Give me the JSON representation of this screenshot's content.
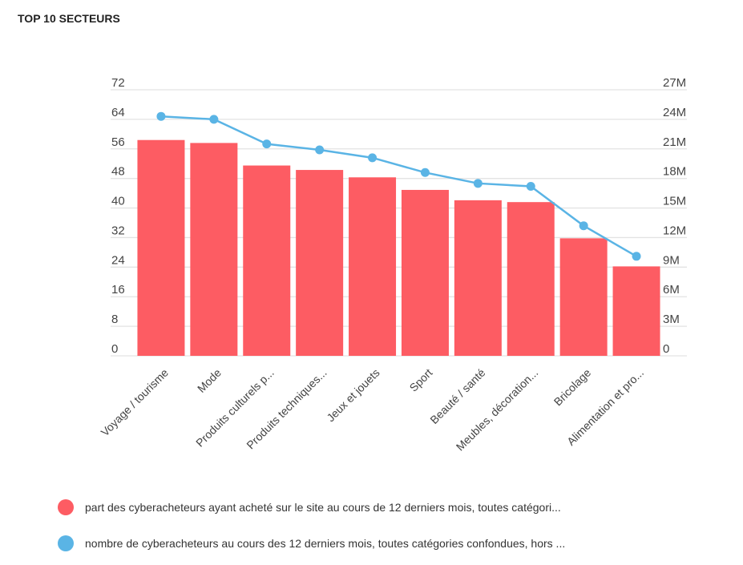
{
  "title": "TOP 10 SECTEURS",
  "chart_data": {
    "type": "bar+line",
    "title": "TOP 10 SECTEURS",
    "categories": [
      "Voyage / tourisme",
      "Mode",
      "Produits culturels p...",
      "Produits techniques...",
      "Jeux et jouets",
      "Sport",
      "Beauté / santé",
      "Meubles, décoration...",
      "Bricolage",
      "Alimentation et pro..."
    ],
    "series": [
      {
        "name": "part des cyberacheteurs ayant acheté sur le site au cours de 12 derniers mois, toutes catégori...",
        "type": "bar",
        "axis": "left",
        "color": "#fd5c63",
        "values": [
          58.4,
          57.6,
          51.5,
          50.3,
          48.3,
          44.9,
          42.1,
          41.6,
          31.8,
          24.2
        ]
      },
      {
        "name": "nombre de cyberacheteurs au cours des 12 derniers mois, toutes catégories confondues, hors ...",
        "type": "line",
        "axis": "right",
        "color": "#5ab4e5",
        "values": [
          24.3,
          24.0,
          21.5,
          20.9,
          20.1,
          18.6,
          17.5,
          17.2,
          13.2,
          10.1
        ]
      }
    ],
    "left_axis": {
      "ylim": [
        0,
        72
      ],
      "ticks": [
        "0",
        "8",
        "16",
        "24",
        "32",
        "40",
        "48",
        "56",
        "64",
        "72"
      ]
    },
    "right_axis": {
      "ylim": [
        0,
        27
      ],
      "unit": "M",
      "ticks": [
        "0",
        "3M",
        "6M",
        "9M",
        "12M",
        "15M",
        "18M",
        "21M",
        "24M",
        "27M"
      ]
    },
    "grid": true,
    "legend_placement": "bottom"
  }
}
